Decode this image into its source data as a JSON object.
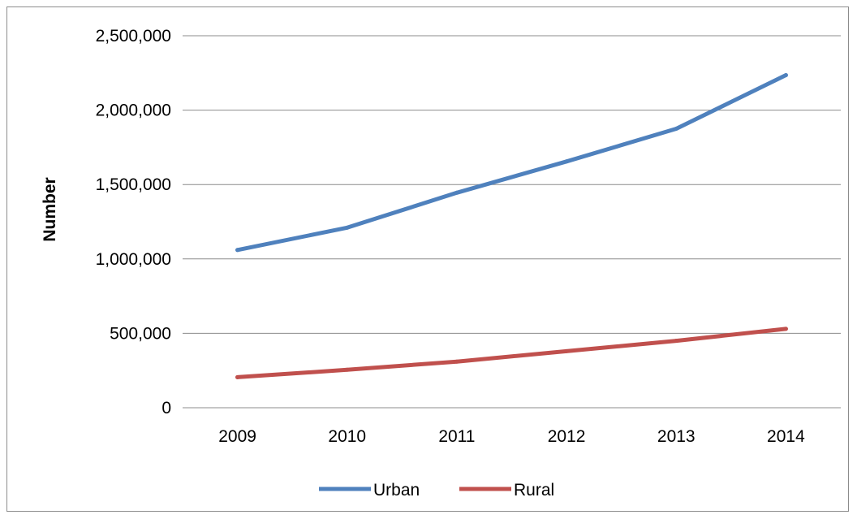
{
  "chart_data": {
    "type": "line",
    "title": "",
    "xlabel": "",
    "ylabel": "Number",
    "categories": [
      "2009",
      "2010",
      "2011",
      "2012",
      "2013",
      "2014"
    ],
    "ylim": [
      0,
      2500000
    ],
    "yticks": [
      0,
      500000,
      1000000,
      1500000,
      2000000,
      2500000
    ],
    "ytick_labels": [
      "0",
      "500,000",
      "1,000,000",
      "1,500,000",
      "2,000,000",
      "2,500,000"
    ],
    "grid": true,
    "legend_position": "bottom",
    "series": [
      {
        "name": "Urban",
        "color": "#4f81bd",
        "values": [
          1060000,
          1210000,
          1445000,
          1655000,
          1875000,
          2235000
        ]
      },
      {
        "name": "Rural",
        "color": "#c0504d",
        "values": [
          205000,
          255000,
          310000,
          380000,
          450000,
          530000
        ]
      }
    ]
  }
}
